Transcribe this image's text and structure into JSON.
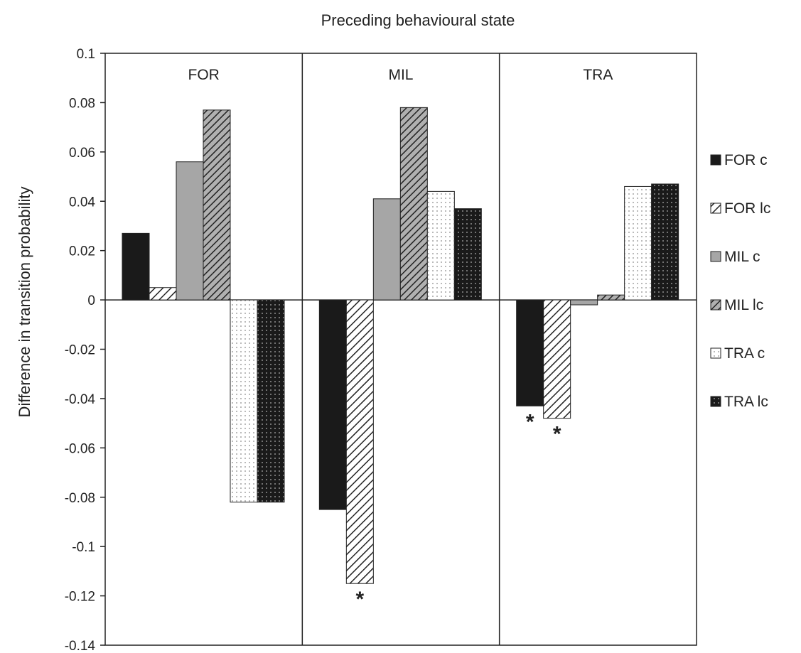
{
  "chart_data": {
    "type": "bar",
    "title": "Preceding behavioural state",
    "ylabel": "Difference in transition probability",
    "xlabel": "",
    "ylim": [
      -0.14,
      0.1
    ],
    "yticks": [
      0.1,
      0.08,
      0.06,
      0.04,
      0.02,
      0,
      -0.02,
      -0.04,
      -0.06,
      -0.08,
      -0.1,
      -0.12,
      -0.14
    ],
    "ytick_labels": [
      "0.1",
      "0.08",
      "0.06",
      "0.04",
      "0.02",
      "0",
      "-0.02",
      "-0.04",
      "-0.06",
      "-0.08",
      "-0.1",
      "-0.12",
      "-0.14"
    ],
    "grid": false,
    "legend_position": "right",
    "categories": [
      "FOR",
      "MIL",
      "TRA"
    ],
    "series": [
      {
        "name": "FOR c",
        "pattern": "solid-black",
        "values": [
          0.027,
          -0.085,
          -0.043
        ]
      },
      {
        "name": "FOR lc",
        "pattern": "hatch-sparse",
        "values": [
          0.005,
          -0.115,
          -0.048
        ]
      },
      {
        "name": "MIL c",
        "pattern": "solid-gray",
        "values": [
          0.056,
          0.041,
          -0.002
        ]
      },
      {
        "name": "MIL lc",
        "pattern": "hatch-dense-gray",
        "values": [
          0.077,
          0.078,
          0.002
        ]
      },
      {
        "name": "TRA c",
        "pattern": "dots-light",
        "values": [
          -0.082,
          0.044,
          0.046
        ]
      },
      {
        "name": "TRA lc",
        "pattern": "dots-dark",
        "values": [
          -0.082,
          0.037,
          0.047
        ]
      }
    ],
    "annotations": [
      {
        "text": "*",
        "category": "MIL",
        "series": "FOR lc"
      },
      {
        "text": "*",
        "category": "TRA",
        "series": "FOR c"
      },
      {
        "text": "*",
        "category": "TRA",
        "series": "FOR lc"
      }
    ],
    "colors": {
      "dark": "#1a1a1a",
      "gray": "#a6a6a6",
      "axis": "#222222"
    }
  }
}
